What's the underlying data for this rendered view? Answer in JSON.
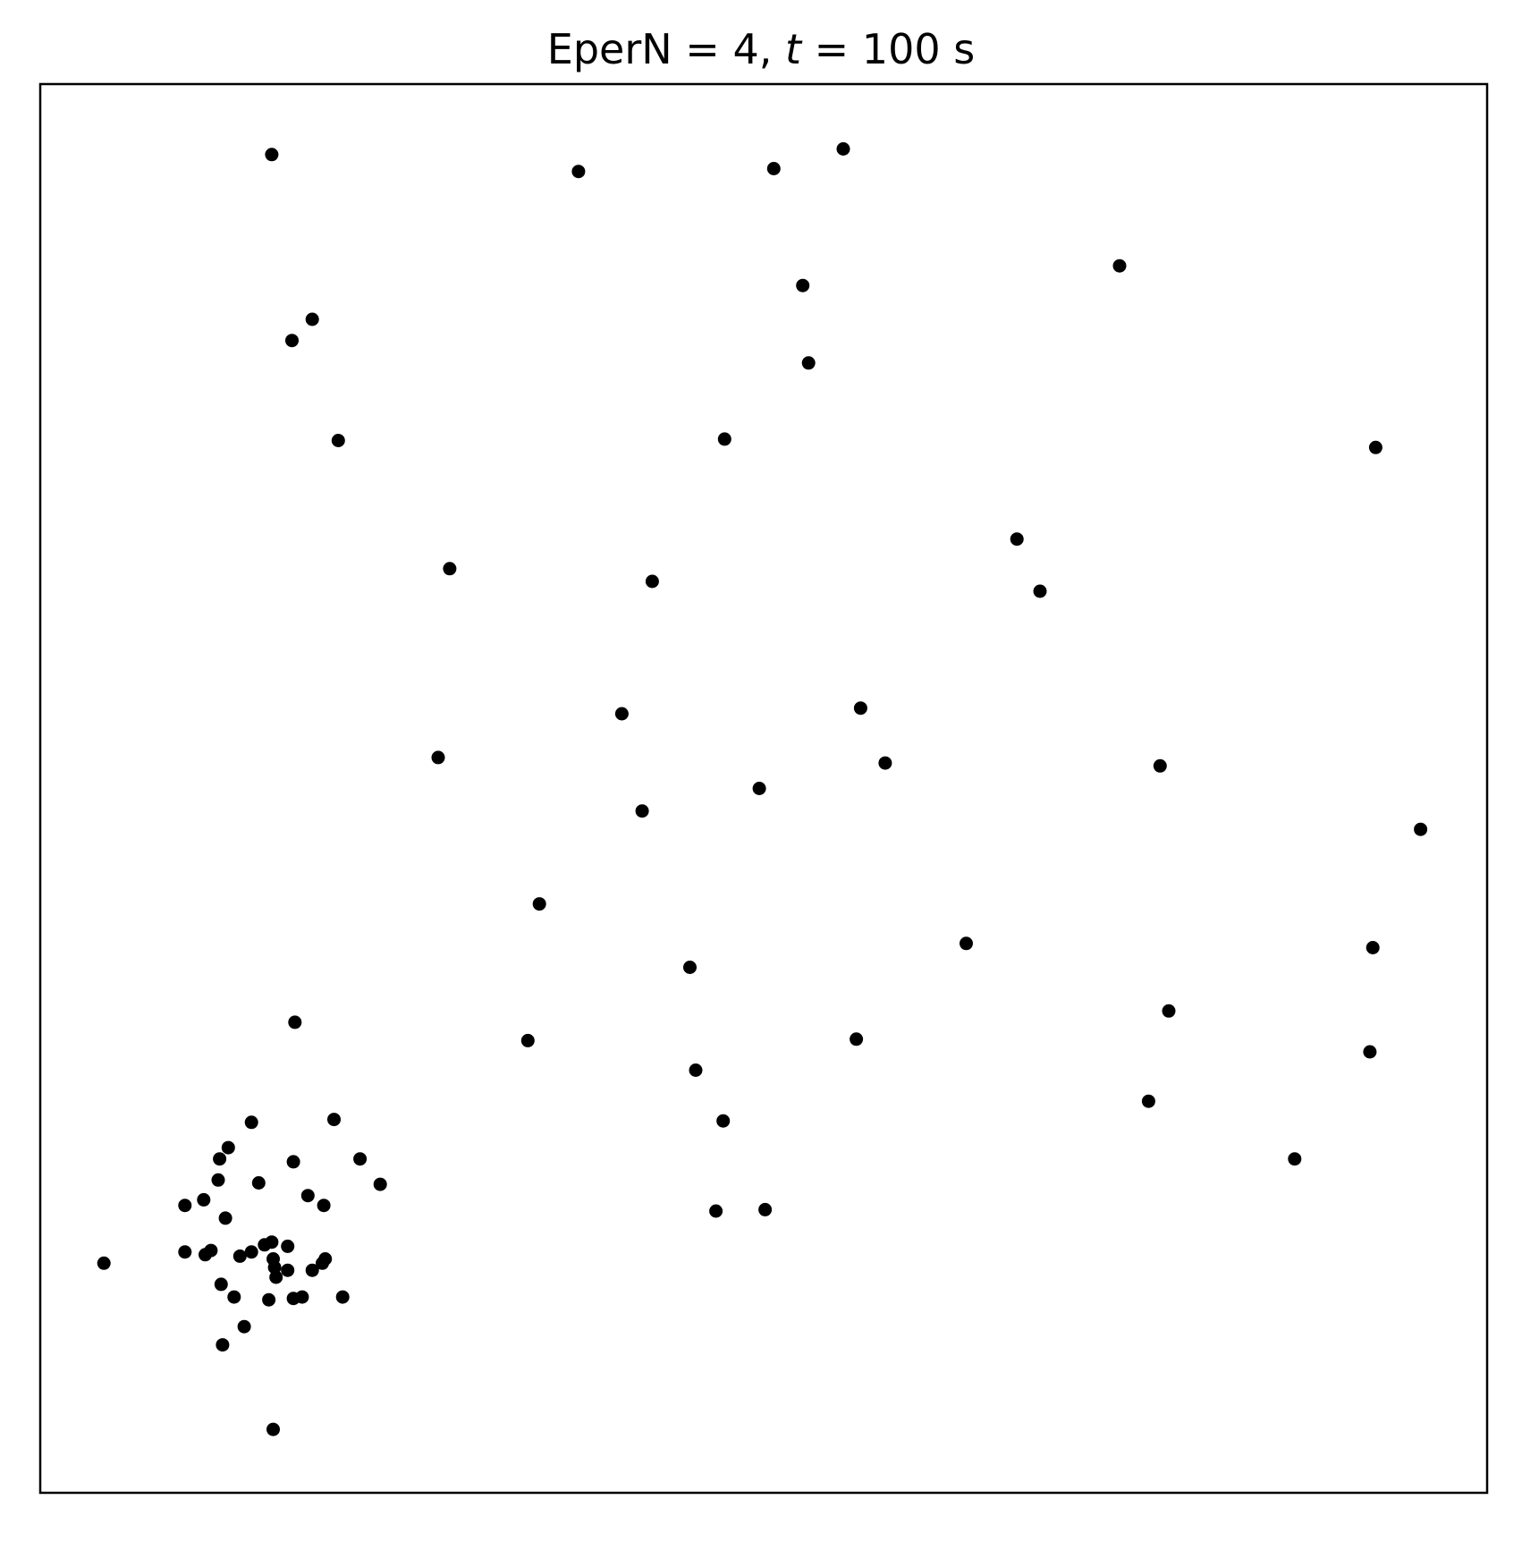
{
  "chart_data": {
    "type": "scatter",
    "title": {
      "prefix": "EperN = 4, ",
      "variable": "t",
      "suffix": " = 100 s"
    },
    "xlabel": "",
    "ylabel": "",
    "xlim": [
      0,
      1
    ],
    "ylim": [
      0,
      1
    ],
    "grid": false,
    "ticks_visible": false,
    "marker_color": "#000000",
    "points": [
      [
        0.16,
        0.95
      ],
      [
        0.372,
        0.938
      ],
      [
        0.507,
        0.94
      ],
      [
        0.555,
        0.954
      ],
      [
        0.746,
        0.871
      ],
      [
        0.527,
        0.857
      ],
      [
        0.174,
        0.818
      ],
      [
        0.188,
        0.833
      ],
      [
        0.531,
        0.802
      ],
      [
        0.206,
        0.747
      ],
      [
        0.473,
        0.748
      ],
      [
        0.923,
        0.742
      ],
      [
        0.283,
        0.656
      ],
      [
        0.423,
        0.647
      ],
      [
        0.675,
        0.677
      ],
      [
        0.691,
        0.64
      ],
      [
        0.402,
        0.553
      ],
      [
        0.567,
        0.557
      ],
      [
        0.275,
        0.522
      ],
      [
        0.584,
        0.518
      ],
      [
        0.497,
        0.5
      ],
      [
        0.416,
        0.484
      ],
      [
        0.774,
        0.516
      ],
      [
        0.954,
        0.471
      ],
      [
        0.345,
        0.418
      ],
      [
        0.449,
        0.373
      ],
      [
        0.64,
        0.39
      ],
      [
        0.921,
        0.387
      ],
      [
        0.176,
        0.334
      ],
      [
        0.337,
        0.321
      ],
      [
        0.78,
        0.342
      ],
      [
        0.453,
        0.3
      ],
      [
        0.564,
        0.322
      ],
      [
        0.919,
        0.313
      ],
      [
        0.203,
        0.265
      ],
      [
        0.472,
        0.264
      ],
      [
        0.766,
        0.278
      ],
      [
        0.867,
        0.237
      ],
      [
        0.467,
        0.2
      ],
      [
        0.501,
        0.201
      ],
      [
        0.044,
        0.163
      ],
      [
        0.1,
        0.204
      ],
      [
        0.146,
        0.263
      ],
      [
        0.13,
        0.245
      ],
      [
        0.124,
        0.237
      ],
      [
        0.123,
        0.222
      ],
      [
        0.221,
        0.237
      ],
      [
        0.175,
        0.235
      ],
      [
        0.235,
        0.219
      ],
      [
        0.113,
        0.208
      ],
      [
        0.151,
        0.22
      ],
      [
        0.185,
        0.211
      ],
      [
        0.196,
        0.204
      ],
      [
        0.128,
        0.195
      ],
      [
        0.1,
        0.171
      ],
      [
        0.114,
        0.169
      ],
      [
        0.118,
        0.172
      ],
      [
        0.138,
        0.168
      ],
      [
        0.146,
        0.171
      ],
      [
        0.155,
        0.176
      ],
      [
        0.16,
        0.178
      ],
      [
        0.171,
        0.175
      ],
      [
        0.161,
        0.166
      ],
      [
        0.162,
        0.16
      ],
      [
        0.163,
        0.153
      ],
      [
        0.171,
        0.158
      ],
      [
        0.188,
        0.158
      ],
      [
        0.195,
        0.163
      ],
      [
        0.197,
        0.166
      ],
      [
        0.125,
        0.148
      ],
      [
        0.134,
        0.139
      ],
      [
        0.158,
        0.137
      ],
      [
        0.175,
        0.138
      ],
      [
        0.181,
        0.139
      ],
      [
        0.209,
        0.139
      ],
      [
        0.141,
        0.118
      ],
      [
        0.126,
        0.105
      ],
      [
        0.161,
        0.045
      ]
    ]
  }
}
